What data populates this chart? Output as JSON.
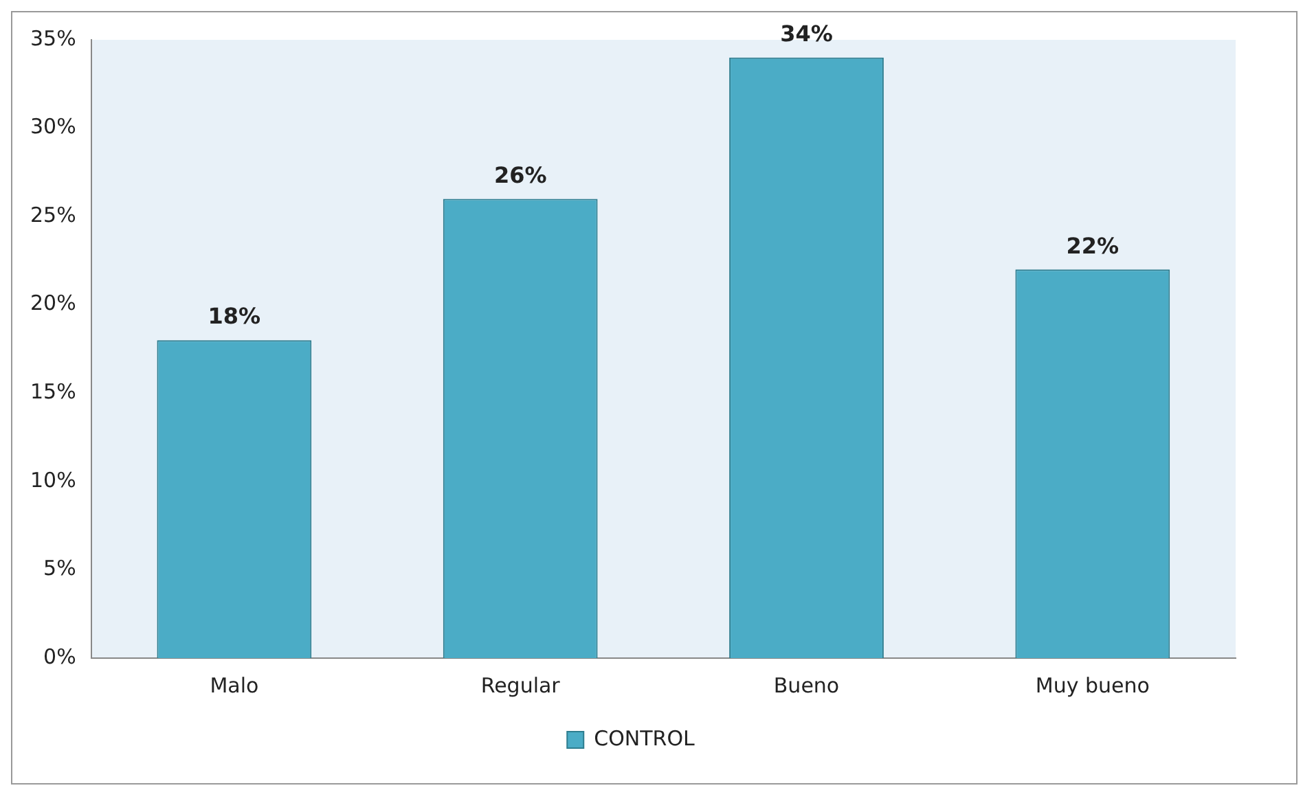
{
  "chart_data": {
    "type": "bar",
    "categories": [
      "Malo",
      "Regular",
      "Bueno",
      "Muy bueno"
    ],
    "series": [
      {
        "name": "CONTROL",
        "color": "#4bacc6",
        "values": [
          18,
          26,
          34,
          22
        ],
        "value_labels": [
          "18%",
          "26%",
          "34%",
          "22%"
        ]
      }
    ],
    "ylim": [
      0,
      35
    ],
    "yticks": [
      {
        "value": 0,
        "label": "0%"
      },
      {
        "value": 5,
        "label": "5%"
      },
      {
        "value": 10,
        "label": "10%"
      },
      {
        "value": 15,
        "label": "15%"
      },
      {
        "value": 20,
        "label": "20%"
      },
      {
        "value": 25,
        "label": "25%"
      },
      {
        "value": 30,
        "label": "30%"
      },
      {
        "value": 35,
        "label": "35%"
      }
    ],
    "grid": false,
    "legend": "bottom"
  }
}
